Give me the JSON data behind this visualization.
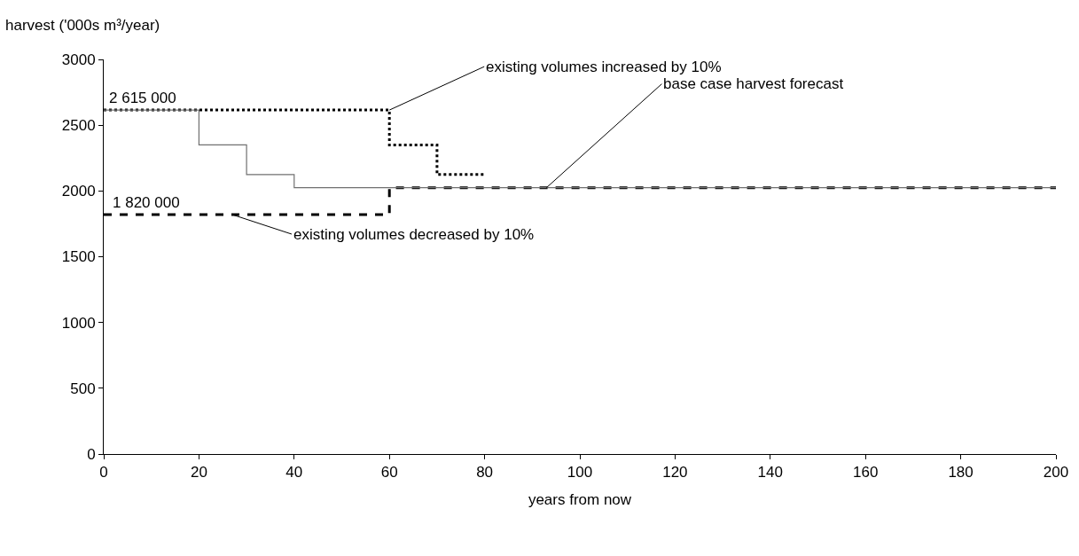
{
  "chart_data": {
    "type": "step",
    "ylabel": "harvest ('000s m³/year)",
    "xlabel": "years from now",
    "xlim": [
      0,
      200
    ],
    "xticks": [
      0,
      20,
      40,
      60,
      80,
      100,
      120,
      140,
      160,
      180,
      200
    ],
    "ylim": [
      0,
      3000
    ],
    "yticks": [
      0,
      500,
      1000,
      1500,
      2000,
      2500,
      3000
    ],
    "series": [
      {
        "color": "#000000",
        "line_style": "dotted",
        "x": [
          0,
          60,
          70,
          80
        ],
        "values": [
          2615,
          2350,
          2125,
          2125
        ]
      },
      {
        "color": "#000000",
        "line_style": "dashed",
        "x": [
          0,
          60,
          200
        ],
        "values": [
          1820,
          2025,
          2025
        ]
      },
      {
        "color": "#707070",
        "line_style": "solid",
        "x": [
          0,
          20,
          30,
          40,
          200
        ],
        "values": [
          2615,
          2350,
          2125,
          2025,
          2025
        ]
      }
    ],
    "annotations": [
      {
        "text": "2 615 000",
        "x": 0,
        "y": 2615
      },
      {
        "text": "1 820 000",
        "x": 0,
        "y": 1820
      },
      {
        "text": "existing volumes increased by 10%",
        "x": 60,
        "y": 2615
      },
      {
        "text": "base case harvest forecast",
        "x": 93,
        "y": 2025
      },
      {
        "text": "existing volumes decreased by 10%",
        "x": 27,
        "y": 1820
      }
    ]
  }
}
